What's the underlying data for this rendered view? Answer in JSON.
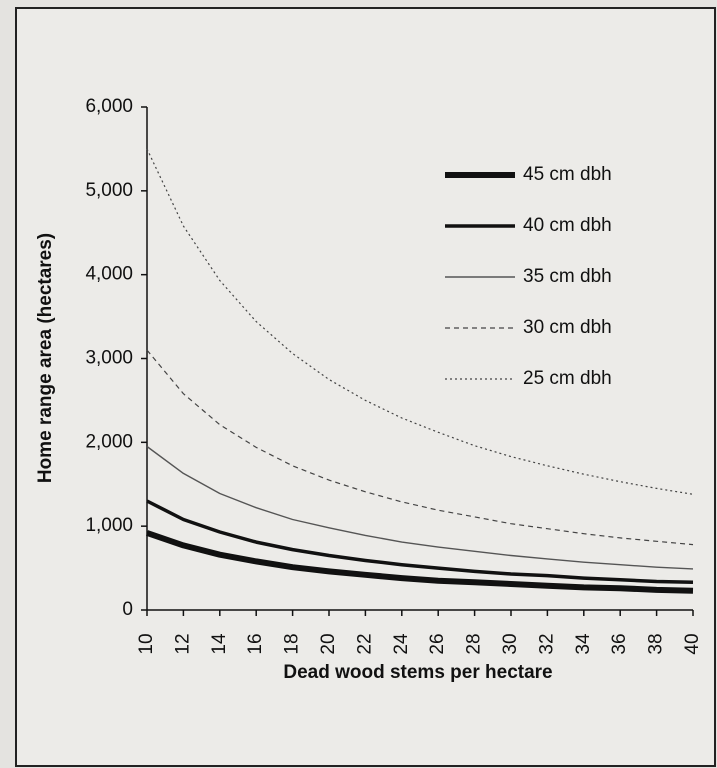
{
  "chart_data": {
    "type": "line",
    "xlabel": "Dead wood stems per hectare",
    "ylabel": "Home range area (hectares)",
    "x": [
      10,
      12,
      14,
      16,
      18,
      20,
      22,
      24,
      26,
      28,
      30,
      32,
      34,
      36,
      38,
      40
    ],
    "xlim": [
      10,
      40
    ],
    "xticks": [
      10,
      12,
      14,
      16,
      18,
      20,
      22,
      24,
      26,
      28,
      30,
      32,
      34,
      36,
      38,
      40
    ],
    "ylim": [
      0,
      6000
    ],
    "yticks": [
      0,
      {
        "value": 1000,
        "label": "1,000"
      },
      {
        "value": 2000,
        "label": "2,000"
      },
      {
        "value": 3000,
        "label": "3,000"
      },
      {
        "value": 4000,
        "label": "4,000"
      },
      {
        "value": 5000,
        "label": "5,000"
      },
      {
        "value": 6000,
        "label": "6,000"
      }
    ],
    "grid": false,
    "legend": "upper right",
    "series": [
      {
        "name": "45 cm dbh",
        "color": "#111111",
        "line_width": 6,
        "line_style": "solid",
        "values": [
          920,
          770,
          660,
          580,
          510,
          460,
          420,
          380,
          350,
          330,
          310,
          290,
          270,
          260,
          240,
          230
        ]
      },
      {
        "name": "40 cm dbh",
        "color": "#111111",
        "line_width": 3.5,
        "line_style": "solid",
        "values": [
          1300,
          1080,
          930,
          810,
          720,
          650,
          590,
          540,
          500,
          460,
          430,
          410,
          380,
          360,
          340,
          330
        ]
      },
      {
        "name": "35 cm dbh",
        "color": "#555555",
        "line_width": 1.4,
        "line_style": "solid",
        "values": [
          1950,
          1630,
          1390,
          1220,
          1080,
          980,
          890,
          810,
          750,
          700,
          650,
          610,
          570,
          540,
          510,
          490
        ]
      },
      {
        "name": "30 cm dbh",
        "color": "#444444",
        "line_width": 1.2,
        "line_style": "dashed",
        "values": [
          3100,
          2580,
          2210,
          1940,
          1720,
          1550,
          1410,
          1290,
          1190,
          1110,
          1030,
          970,
          910,
          860,
          820,
          780
        ]
      },
      {
        "name": "25 cm dbh",
        "color": "#444444",
        "line_width": 1.2,
        "line_style": "dotted",
        "values": [
          5500,
          4580,
          3930,
          3440,
          3060,
          2750,
          2500,
          2290,
          2120,
          1960,
          1830,
          1720,
          1620,
          1530,
          1450,
          1380
        ]
      }
    ]
  }
}
